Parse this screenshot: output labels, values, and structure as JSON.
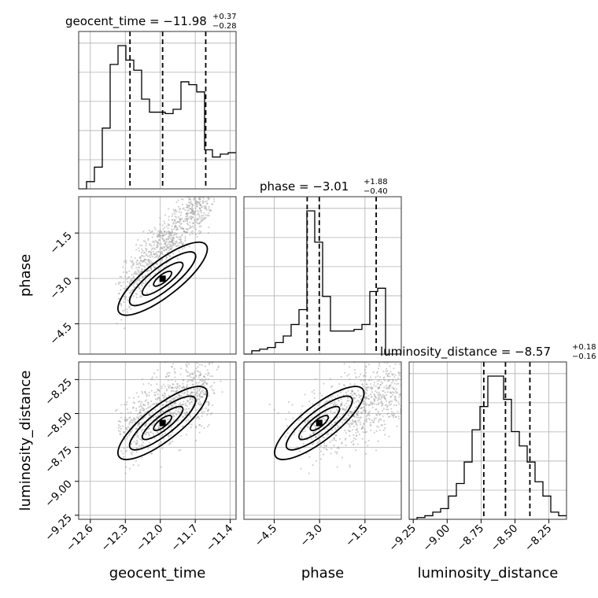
{
  "chart_data": {
    "type": "corner",
    "parameters": [
      "geocent_time",
      "phase",
      "luminosity_distance"
    ],
    "axis_labels": {
      "geocent_time": "geocent_time",
      "phase": "phase",
      "luminosity_distance": "luminosity_distance"
    },
    "ranges": {
      "geocent_time": [
        -12.7,
        -11.35
      ],
      "phase": [
        -5.5,
        -0.3
      ],
      "luminosity_distance": [
        -9.28,
        -8.12
      ]
    },
    "tick_labels": {
      "geocent_time": [
        "−12.6",
        "−12.3",
        "−12.0",
        "−11.7",
        "−11.4"
      ],
      "phase": [
        "−4.5",
        "−3.0",
        "−1.5"
      ],
      "luminosity_distance": [
        "−9.25",
        "−9.00",
        "−8.75",
        "−8.50",
        "−8.25"
      ]
    },
    "tick_values": {
      "geocent_time": [
        -12.6,
        -12.3,
        -12.0,
        -11.7,
        -11.4
      ],
      "phase": [
        -4.5,
        -3.0,
        -1.5
      ],
      "luminosity_distance": [
        -9.25,
        -9.0,
        -8.75,
        -8.5,
        -8.25
      ]
    },
    "titles": {
      "geocent_time": {
        "prefix": "geocent_time = −11.98",
        "plus": "+0.37",
        "minus": "−0.28"
      },
      "phase": {
        "prefix": "phase = −3.01",
        "plus": "+1.88",
        "minus": "−0.40"
      },
      "luminosity_distance": {
        "prefix": "luminosity_distance = −8.57",
        "plus": "+0.18",
        "minus": "−0.16"
      }
    },
    "quantiles": {
      "geocent_time": [
        -12.26,
        -11.98,
        -11.61
      ],
      "phase": [
        -3.41,
        -3.01,
        -1.13
      ],
      "luminosity_distance": [
        -8.73,
        -8.57,
        -8.39
      ]
    },
    "histograms": {
      "geocent_time": {
        "edges": [
          -12.7,
          -12.6325,
          -12.565,
          -12.4975,
          -12.43,
          -12.3625,
          -12.295,
          -12.2275,
          -12.16,
          -12.0925,
          -12.025,
          -11.9575,
          -11.89,
          -11.8225,
          -11.755,
          -11.6875,
          -11.62,
          -11.5525,
          -11.485,
          -11.4175,
          -11.35
        ],
        "counts": [
          0.0,
          0.05,
          0.15,
          0.42,
          0.86,
          0.99,
          0.89,
          0.82,
          0.62,
          0.53,
          0.53,
          0.52,
          0.55,
          0.74,
          0.72,
          0.67,
          0.27,
          0.22,
          0.24,
          0.25
        ]
      },
      "phase": {
        "edges": [
          -5.5,
          -5.24,
          -4.98,
          -4.72,
          -4.46,
          -4.2,
          -3.94,
          -3.68,
          -3.42,
          -3.16,
          -2.9,
          -2.64,
          -2.38,
          -2.12,
          -1.86,
          -1.6,
          -1.34,
          -1.08,
          -0.82,
          -0.56,
          -0.3
        ],
        "counts": [
          0.0,
          0.02,
          0.03,
          0.04,
          0.07,
          0.11,
          0.18,
          0.27,
          0.87,
          0.68,
          0.35,
          0.14,
          0.14,
          0.14,
          0.15,
          0.18,
          0.38,
          0.4,
          0.0,
          0.0
        ]
      },
      "luminosity_distance": {
        "edges": [
          -9.28,
          -9.222,
          -9.164,
          -9.106,
          -9.048,
          -8.99,
          -8.932,
          -8.874,
          -8.816,
          -8.758,
          -8.7,
          -8.642,
          -8.584,
          -8.526,
          -8.468,
          -8.41,
          -8.352,
          -8.294,
          -8.236,
          -8.178,
          -8.12
        ],
        "counts": [
          0.0,
          0.01,
          0.02,
          0.04,
          0.06,
          0.13,
          0.2,
          0.32,
          0.5,
          0.63,
          0.8,
          0.8,
          0.67,
          0.49,
          0.41,
          0.32,
          0.21,
          0.13,
          0.04,
          0.02
        ]
      }
    },
    "grid": true
  }
}
